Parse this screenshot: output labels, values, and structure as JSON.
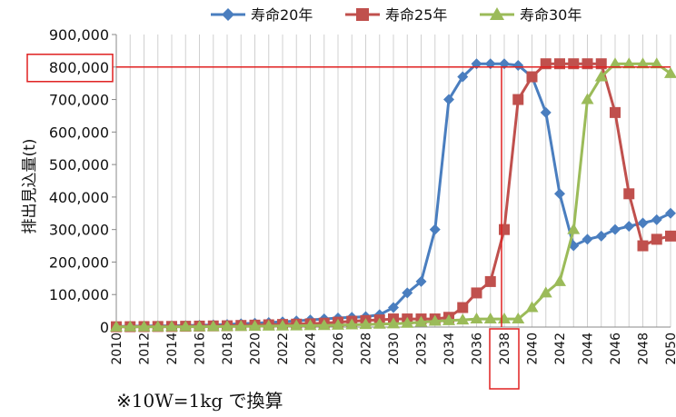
{
  "chart_data": {
    "type": "line",
    "ylabel": "排出見込量(t)",
    "ylim": [
      0,
      900000
    ],
    "y_ticks": [
      0,
      100000,
      200000,
      300000,
      400000,
      500000,
      600000,
      700000,
      800000,
      900000
    ],
    "y_tick_labels": [
      "0",
      "100,000",
      "200,000",
      "300,000",
      "400,000",
      "500,000",
      "600,000",
      "700,000",
      "800,000",
      "900,000"
    ],
    "x": [
      2010,
      2011,
      2012,
      2013,
      2014,
      2015,
      2016,
      2017,
      2018,
      2019,
      2020,
      2021,
      2022,
      2023,
      2024,
      2025,
      2026,
      2027,
      2028,
      2029,
      2030,
      2031,
      2032,
      2033,
      2034,
      2035,
      2036,
      2037,
      2038,
      2039,
      2040,
      2041,
      2042,
      2043,
      2044,
      2045,
      2046,
      2047,
      2048,
      2049,
      2050
    ],
    "x_tick_labels": [
      "2010",
      "2012",
      "2014",
      "2016",
      "2018",
      "2020",
      "2022",
      "2024",
      "2026",
      "2028",
      "2030",
      "2032",
      "2034",
      "2036",
      "2038",
      "2040",
      "2042",
      "2044",
      "2046",
      "2048",
      "2050"
    ],
    "grid": "vertical",
    "legend": "top",
    "series": [
      {
        "name": "寿命20年",
        "color": "#4a7ebf",
        "marker": "diamond",
        "values": [
          2000,
          2500,
          3000,
          3500,
          4000,
          4500,
          5500,
          6500,
          8000,
          10000,
          12000,
          14000,
          16000,
          19000,
          22000,
          25000,
          28000,
          30000,
          32000,
          38000,
          60000,
          105000,
          140000,
          300000,
          700000,
          770000,
          810000,
          810000,
          810000,
          805000,
          770000,
          660000,
          410000,
          250000,
          270000,
          280000,
          300000,
          310000,
          320000,
          330000,
          350000
        ]
      },
      {
        "name": "寿命25年",
        "color": "#c0504d",
        "marker": "square",
        "values": [
          1000,
          1200,
          1500,
          1800,
          2000,
          2500,
          3000,
          3500,
          4000,
          5000,
          6000,
          7000,
          8000,
          9000,
          10000,
          12000,
          15000,
          18000,
          20000,
          22000,
          25000,
          25000,
          25000,
          25000,
          30000,
          60000,
          105000,
          140000,
          300000,
          700000,
          770000,
          810000,
          810000,
          810000,
          810000,
          810000,
          660000,
          410000,
          250000,
          270000,
          280000
        ]
      },
      {
        "name": "寿命30年",
        "color": "#9bbb59",
        "marker": "triangle",
        "values": [
          500,
          600,
          700,
          800,
          900,
          1000,
          1200,
          1500,
          1800,
          2000,
          2500,
          3000,
          3500,
          4000,
          4500,
          5000,
          6000,
          7000,
          8000,
          9000,
          10000,
          12000,
          15000,
          18000,
          20000,
          22000,
          25000,
          25000,
          25000,
          25000,
          60000,
          105000,
          140000,
          300000,
          700000,
          770000,
          810000,
          810000,
          810000,
          810000,
          780000
        ]
      }
    ],
    "reference_line": {
      "label": "800,000",
      "value": 800000
    },
    "highlighted_x_label": "2038",
    "highlight_color": "#e02020"
  },
  "footnote": "※10W=1kg で換算"
}
